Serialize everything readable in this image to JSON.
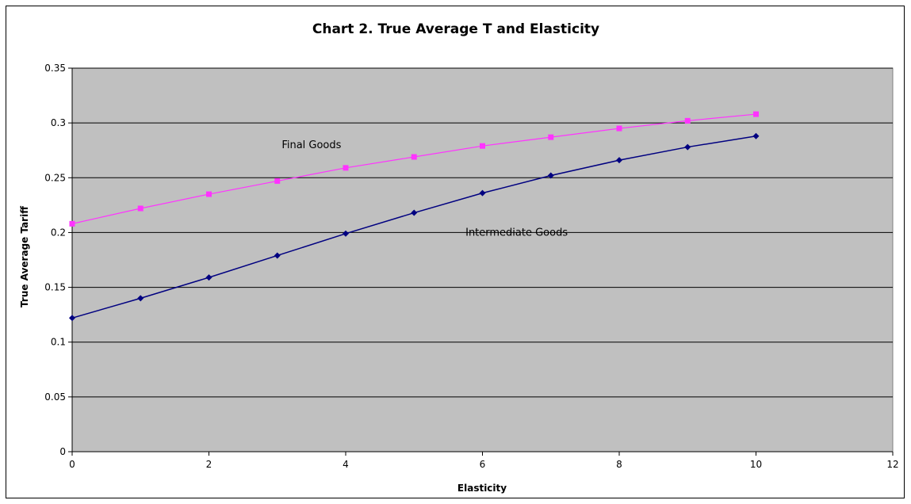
{
  "chart_data": {
    "type": "line",
    "title": "Chart 2. True Average T and Elasticity",
    "xlabel": "Elasticity",
    "ylabel": "True Average Tariff",
    "xlim": [
      0,
      12
    ],
    "ylim": [
      0,
      0.35
    ],
    "x_ticks": [
      0,
      2,
      4,
      6,
      8,
      10,
      12
    ],
    "x_tick_labels": [
      "0",
      "2",
      "4",
      "6",
      "8",
      "10",
      "12"
    ],
    "y_ticks": [
      0,
      0.05,
      0.1,
      0.15,
      0.2,
      0.25,
      0.3,
      0.35
    ],
    "y_tick_labels": [
      "0",
      "0.05",
      "0.1",
      "0.15",
      "0.2",
      "0.25",
      "0.3",
      "0.35"
    ],
    "grid": "horizontal",
    "plot_background": "#c0c0c0",
    "x": [
      0,
      1,
      2,
      3,
      4,
      5,
      6,
      7,
      8,
      9,
      10
    ],
    "series": [
      {
        "name": "Final Goods",
        "color": "#ff33ff",
        "marker": "square",
        "values": [
          0.208,
          0.222,
          0.235,
          0.247,
          0.259,
          0.269,
          0.279,
          0.287,
          0.295,
          0.302,
          0.308
        ]
      },
      {
        "name": "Intermediate Goods",
        "color": "#000080",
        "marker": "diamond",
        "values": [
          0.122,
          0.14,
          0.159,
          0.179,
          0.199,
          0.218,
          0.236,
          0.252,
          0.266,
          0.278,
          0.288
        ]
      }
    ],
    "annotations": [
      {
        "text": "Final Goods",
        "x": 3.5,
        "y": 0.277
      },
      {
        "text": "Intermediate Goods",
        "x": 6.5,
        "y": 0.197
      }
    ]
  }
}
